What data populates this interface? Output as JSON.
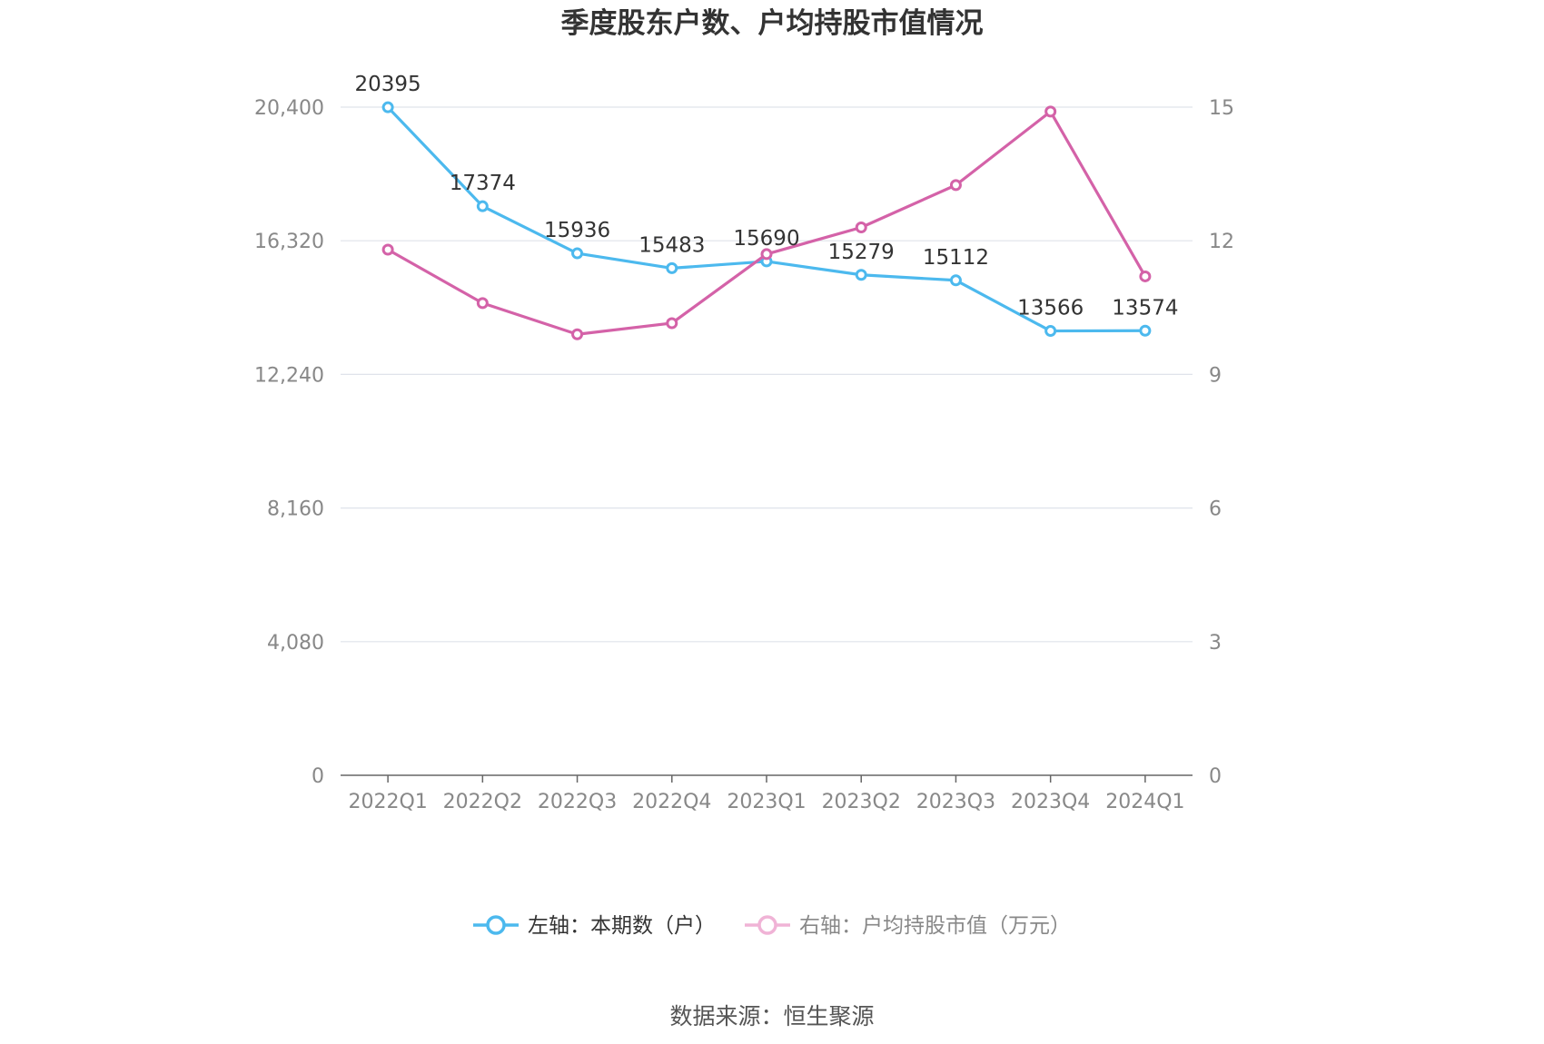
{
  "chart_data": {
    "type": "line",
    "title": "季度股东户数、户均持股市值情况",
    "categories": [
      "2022Q1",
      "2022Q2",
      "2022Q3",
      "2022Q4",
      "2023Q1",
      "2023Q2",
      "2023Q3",
      "2023Q4",
      "2024Q1"
    ],
    "left_axis": {
      "ylim": [
        0,
        20400
      ],
      "ticks": [
        0,
        4080,
        8160,
        12240,
        16320,
        20400
      ],
      "tick_labels": [
        "0",
        "4,080",
        "8,160",
        "12,240",
        "16,320",
        "20,400"
      ]
    },
    "right_axis": {
      "ylim": [
        0,
        15
      ],
      "ticks": [
        0,
        3,
        6,
        9,
        12,
        15
      ],
      "tick_labels": [
        "0",
        "3",
        "6",
        "9",
        "12",
        "15"
      ]
    },
    "series": [
      {
        "name": "左轴：本期数（户）",
        "axis": "left",
        "color": "#4cb9ee",
        "values": [
          20395,
          17374,
          15936,
          15483,
          15690,
          15279,
          15112,
          13566,
          13574
        ],
        "data_labels": [
          "20395",
          "17374",
          "15936",
          "15483",
          "15690",
          "15279",
          "15112",
          "13566",
          "13574"
        ]
      },
      {
        "name": "右轴：户均持股市值（万元）",
        "axis": "right",
        "color": "#d462a8",
        "legend_color": "#f0b3d6",
        "values": [
          11.8,
          10.6,
          9.9,
          10.15,
          11.7,
          12.3,
          13.25,
          14.9,
          11.2
        ]
      }
    ],
    "grid": true,
    "legend_position": "bottom"
  },
  "source_text": "数据来源：恒生聚源"
}
